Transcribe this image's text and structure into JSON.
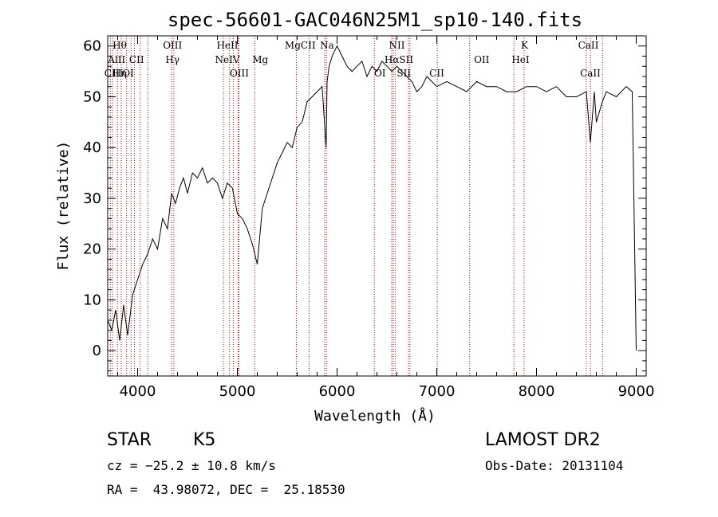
{
  "chart_data": {
    "type": "line",
    "title": "spec-56601-GAC046N25M1_sp10-140.fits",
    "xlabel": "Wavelength (Å)",
    "ylabel": "Flux (relative)",
    "xlim": [
      3700,
      9100
    ],
    "ylim": [
      -5,
      62
    ],
    "xticks": [
      4000,
      5000,
      6000,
      7000,
      8000,
      9000
    ],
    "yticks": [
      0,
      10,
      20,
      30,
      40,
      50,
      60
    ],
    "grid": false,
    "series": [
      {
        "x": [
          3700,
          3740,
          3780,
          3820,
          3860,
          3900,
          3950,
          4000,
          4050,
          4100,
          4150,
          4200,
          4250,
          4300,
          4340,
          4380,
          4420,
          4460,
          4500,
          4550,
          4600,
          4650,
          4700,
          4750,
          4800,
          4850,
          4900,
          4950,
          5000,
          5050,
          5100,
          5150,
          5200,
          5250,
          5300,
          5350,
          5400,
          5450,
          5500,
          5550,
          5600,
          5650,
          5700,
          5750,
          5800,
          5850,
          5890,
          5900,
          5920,
          5950,
          6000,
          6050,
          6100,
          6150,
          6200,
          6250,
          6300,
          6350,
          6400,
          6450,
          6500,
          6550,
          6600,
          6650,
          6700,
          6750,
          6800,
          6850,
          6900,
          6950,
          7000,
          7100,
          7200,
          7300,
          7400,
          7500,
          7600,
          7700,
          7800,
          7900,
          8000,
          8100,
          8200,
          8300,
          8400,
          8500,
          8540,
          8580,
          8600,
          8660,
          8700,
          8800,
          8900,
          8960,
          9000
        ],
        "y": [
          6,
          4,
          8,
          2,
          9,
          3,
          11,
          14,
          17,
          19,
          22,
          20,
          26,
          24,
          31,
          29,
          32,
          34,
          31,
          35,
          34,
          36,
          33,
          34,
          33,
          30,
          33,
          32,
          27,
          26,
          24,
          21,
          17,
          28,
          31,
          34,
          37,
          39,
          41,
          40,
          44,
          45,
          49,
          50,
          51,
          52,
          40,
          53,
          56,
          58,
          60,
          58,
          56,
          55,
          56,
          57,
          54,
          56,
          55,
          57,
          56,
          55,
          56,
          55,
          54,
          53,
          51,
          52,
          54,
          53,
          52,
          53,
          52,
          51,
          53,
          52,
          52,
          51,
          51,
          52,
          52,
          51,
          52,
          50,
          50,
          51,
          41,
          51,
          45,
          49,
          51,
          50,
          52,
          51,
          0
        ]
      }
    ],
    "line_marks": [
      3727,
      3750,
      3798,
      3835,
      3889,
      3934,
      3968,
      4026,
      4102,
      4340,
      4363,
      4861,
      4922,
      4959,
      5007,
      5016,
      5176,
      5592,
      5720,
      5876,
      5893,
      6374,
      6548,
      6563,
      6583,
      6716,
      6731,
      7005,
      7330,
      7774,
      7875,
      8498,
      8542,
      8662
    ],
    "line_labels": [
      {
        "text": "Hθ",
        "row": 0,
        "wl": 3820
      },
      {
        "text": "AlII",
        "row": 1,
        "wl": 3790
      },
      {
        "text": "CII",
        "row": 1,
        "wl": 3990
      },
      {
        "text": "CIII",
        "row": 2,
        "wl": 3760
      },
      {
        "text": "Hη",
        "row": 2,
        "wl": 3820
      },
      {
        "text": "OI",
        "row": 2,
        "wl": 3905
      },
      {
        "text": "OIII",
        "row": 0,
        "wl": 4350
      },
      {
        "text": "Hγ",
        "row": 1,
        "wl": 4350
      },
      {
        "text": "HeII",
        "row": 0,
        "wl": 4900
      },
      {
        "text": "NeIV",
        "row": 1,
        "wl": 4900
      },
      {
        "text": "OIII",
        "row": 2,
        "wl": 5020
      },
      {
        "text": "Mg",
        "row": 1,
        "wl": 5230
      },
      {
        "text": "MgCII",
        "row": 0,
        "wl": 5630
      },
      {
        "text": "Na",
        "row": 0,
        "wl": 5900
      },
      {
        "text": "NII",
        "row": 0,
        "wl": 6600
      },
      {
        "text": "HαSII",
        "row": 1,
        "wl": 6620
      },
      {
        "text": "OI",
        "row": 2,
        "wl": 6430
      },
      {
        "text": "SII",
        "row": 2,
        "wl": 6670
      },
      {
        "text": "CII",
        "row": 2,
        "wl": 7000
      },
      {
        "text": "OII",
        "row": 1,
        "wl": 7450
      },
      {
        "text": "K",
        "row": 0,
        "wl": 7880
      },
      {
        "text": "HeI",
        "row": 1,
        "wl": 7840
      },
      {
        "text": "CaII",
        "row": 0,
        "wl": 8520
      },
      {
        "text": "CaII",
        "row": 2,
        "wl": 8540
      }
    ],
    "colors": {
      "line": "#000000",
      "marks": "#cc0000",
      "axes": "#000000"
    }
  },
  "footer": {
    "class": "STAR",
    "subclass": "K5",
    "survey": "LAMOST DR2",
    "cz": "cz = −25.2 ± 10.8 km/s",
    "obsdate": "Obs-Date: 20131104",
    "radec": "RA =  43.98072, DEC =  25.18530"
  }
}
